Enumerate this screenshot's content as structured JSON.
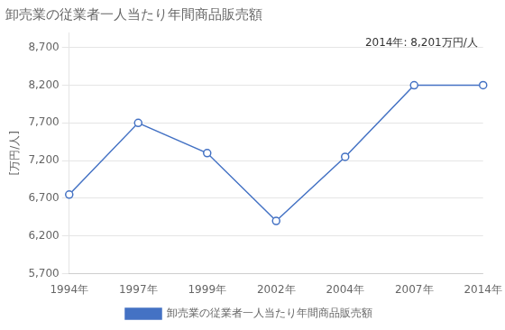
{
  "chart_data": {
    "type": "line",
    "title": "卸売業の従業者一人当たり年間商品販売額",
    "ylabel": "[万円/人]",
    "annotation": "2014年: 8,201万円/人",
    "categories": [
      "1994年",
      "1997年",
      "1999年",
      "2002年",
      "2004年",
      "2007年",
      "2014年"
    ],
    "series": [
      {
        "name": "卸売業の従業者一人当たり年間商品販売額",
        "color": "#4472C4",
        "marker": "circle",
        "line_style": "solid",
        "values": [
          6750,
          7700,
          7300,
          6400,
          7250,
          8200,
          8201
        ]
      }
    ],
    "ylim": [
      5700,
      8900
    ],
    "yticks": [
      {
        "value": 5700,
        "label": "5,700"
      },
      {
        "value": 6200,
        "label": "6,200"
      },
      {
        "value": 6700,
        "label": "6,700"
      },
      {
        "value": 7200,
        "label": "7,200"
      },
      {
        "value": 7700,
        "label": "7,700"
      },
      {
        "value": 8200,
        "label": "8,200"
      },
      {
        "value": 8700,
        "label": "8,700"
      }
    ],
    "grid": true,
    "legend": "bottom"
  }
}
